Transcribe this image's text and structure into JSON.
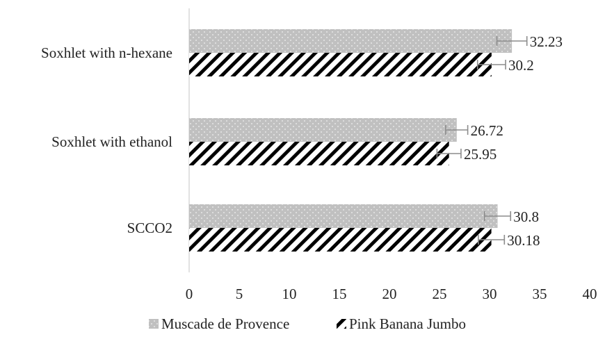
{
  "chart_data": {
    "type": "bar",
    "orientation": "horizontal",
    "categories": [
      "Soxhlet with n-hexane",
      "Soxhlet with ethanol",
      "SCCO2"
    ],
    "series": [
      {
        "name": "Muscade de Provence",
        "values": [
          32.23,
          26.72,
          30.8
        ],
        "labels": [
          "32.23",
          "26.72",
          "30.8"
        ],
        "errors": [
          1.5,
          1.1,
          1.3
        ],
        "color": "#bfbfbf",
        "pattern": "dotted"
      },
      {
        "name": "Pink Banana Jumbo",
        "values": [
          30.2,
          25.95,
          30.18
        ],
        "labels": [
          "30.2",
          "25.95",
          "30.18"
        ],
        "errors": [
          1.4,
          1.2,
          1.3
        ],
        "color": "#000000",
        "pattern": "diagonal-stripes"
      }
    ],
    "xlim": [
      0,
      40
    ],
    "xticks": [
      "0",
      "5",
      "10",
      "15",
      "20",
      "25",
      "30",
      "35",
      "40"
    ],
    "xlabel": "",
    "ylabel": "",
    "title": "",
    "grid": false,
    "legend_position": "bottom"
  }
}
